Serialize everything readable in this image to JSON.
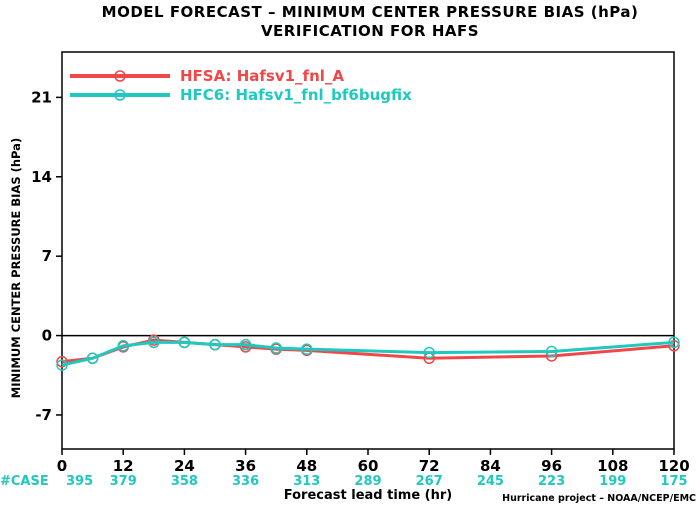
{
  "chart_data": {
    "type": "line",
    "title": "MODEL FORECAST – MINIMUM CENTER PRESSURE BIAS (hPa)",
    "subtitle": "VERIFICATION FOR HAFS",
    "xlabel": "Forecast lead time (hr)",
    "ylabel": "MINIMUM CENTER PRESSURE BIAS (hPa)",
    "xlim": [
      0,
      120
    ],
    "ylim": [
      -10,
      25
    ],
    "xticks": [
      0,
      12,
      24,
      36,
      48,
      60,
      72,
      84,
      96,
      108,
      120
    ],
    "yticks": [
      -7,
      0,
      7,
      14,
      21
    ],
    "zero_line": true,
    "grid": false,
    "legend": "top-left",
    "series": [
      {
        "name": "HFSA: Hafsv1_fnl_A",
        "color": "#f04848",
        "x": [
          0,
          6,
          12,
          18,
          24,
          30,
          36,
          42,
          48,
          72,
          96,
          120
        ],
        "y": [
          -2.3,
          -2.0,
          -1.0,
          -0.4,
          -0.6,
          -0.8,
          -1.0,
          -1.2,
          -1.3,
          -2.0,
          -1.8,
          -0.9
        ]
      },
      {
        "name": "HFC6: Hafsv1_fnl_bf6bugfix",
        "color": "#20c8c0",
        "x": [
          0,
          6,
          12,
          18,
          24,
          30,
          36,
          42,
          48,
          72,
          96,
          120
        ],
        "y": [
          -2.6,
          -2.0,
          -0.9,
          -0.6,
          -0.6,
          -0.8,
          -0.8,
          -1.1,
          -1.2,
          -1.5,
          -1.4,
          -0.6
        ]
      }
    ],
    "cases": {
      "label": "#CASE",
      "color": "#20c8c0",
      "x": [
        0,
        12,
        24,
        36,
        48,
        60,
        72,
        84,
        96,
        108,
        120
      ],
      "values": [
        "395",
        "379",
        "358",
        "336",
        "313",
        "289",
        "267",
        "245",
        "223",
        "199",
        "175"
      ]
    },
    "credit": "Hurricane project – NOAA/NCEP/EMC"
  }
}
